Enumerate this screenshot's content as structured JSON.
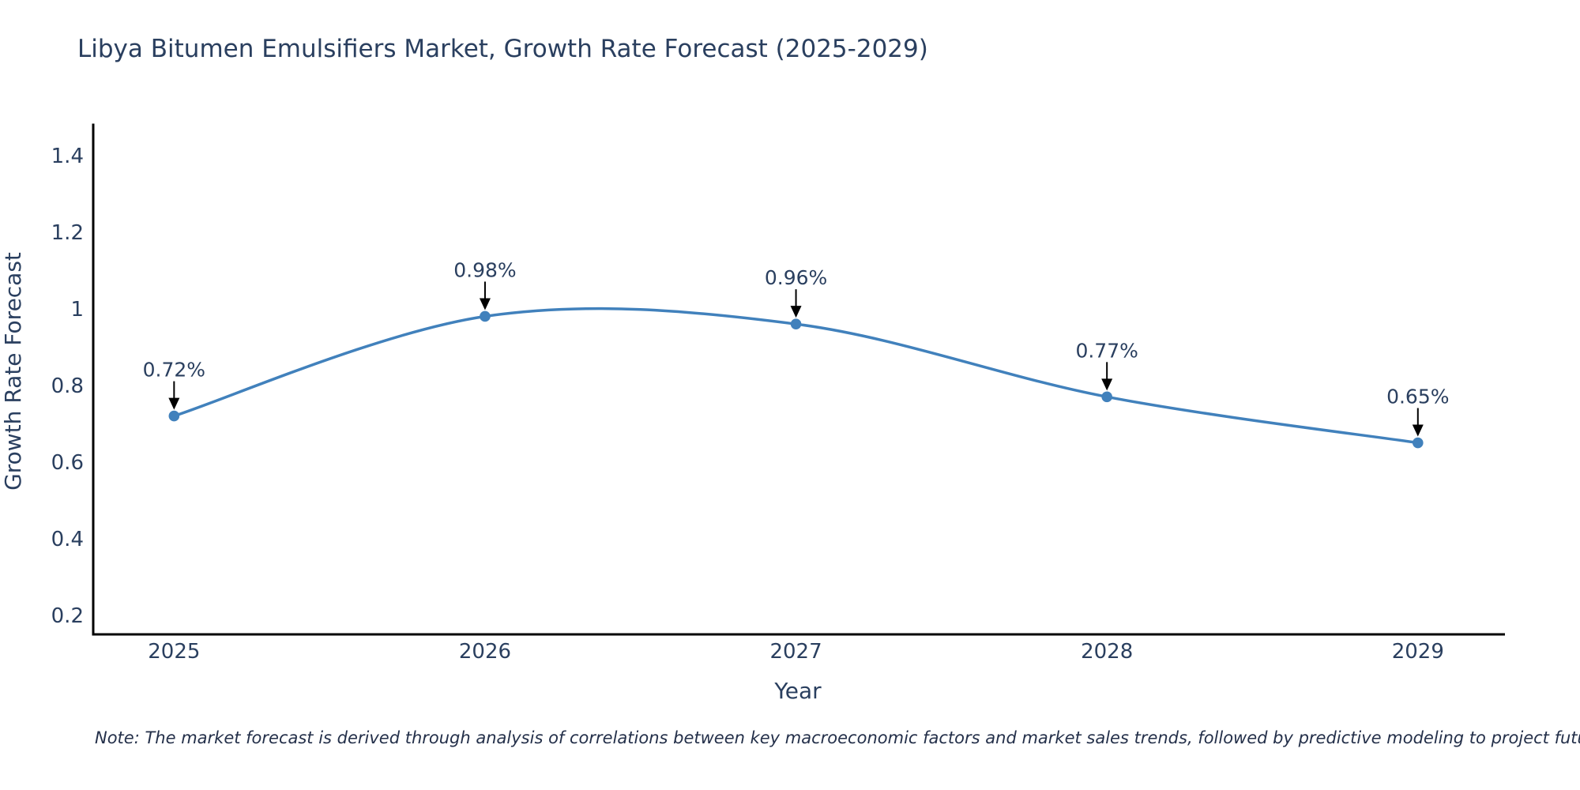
{
  "note": "Note: The market forecast is derived through analysis of correlations between key macroeconomic factors and market sales trends, followed by predictive modeling to project future sales",
  "chart_data": {
    "type": "line",
    "title": "Libya Bitumen Emulsifiers Market, Growth Rate Forecast (2025-2029)",
    "xlabel": "Year",
    "ylabel": "Growth Rate Forecast",
    "x": [
      2025,
      2026,
      2027,
      2028,
      2029
    ],
    "values": [
      0.72,
      0.98,
      0.96,
      0.77,
      0.65
    ],
    "annotations": [
      "0.72%",
      "0.98%",
      "0.96%",
      "0.77%",
      "0.65%"
    ],
    "xticks": [
      "2025",
      "2026",
      "2027",
      "2028",
      "2029"
    ],
    "yticks": [
      "0.2",
      "0.4",
      "0.6",
      "0.8",
      "1",
      "1.2",
      "1.4"
    ],
    "xlim": [
      2024.74,
      2029.28
    ],
    "ylim": [
      0.15,
      1.48
    ],
    "grid": false,
    "legend": false,
    "line_shape": "spline",
    "colors": {
      "line": "#4181bc",
      "marker": "#4181bc",
      "axis": "#000000",
      "text": "#2a3f5f",
      "annotation_arrow": "#000000"
    }
  }
}
